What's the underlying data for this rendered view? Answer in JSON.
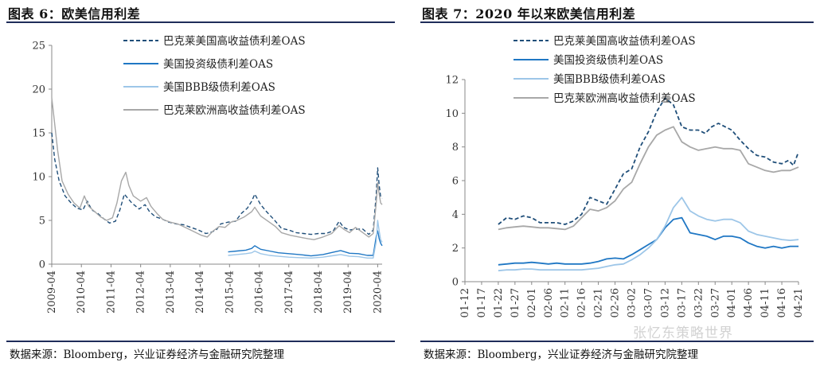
{
  "left_panel": {
    "title": "图表 6：欧美信用利差",
    "source": "数据来源：Bloomberg，兴业证券经济与金融研究院整理"
  },
  "right_panel": {
    "title": "图表 7：2020 年以来欧美信用利差",
    "source": "数据来源：Bloomberg，兴业证券经济与金融研究院整理"
  },
  "watermark": "张忆东策略世界",
  "colors": {
    "us_hy": "#1f4e79",
    "us_ig": "#1f77c4",
    "us_bbb": "#9dc6e8",
    "eu_hy": "#a8a8a8",
    "axis": "#888888"
  },
  "chart_data": [
    {
      "type": "line",
      "title": "欧美信用利差",
      "xlabel": "",
      "ylabel": "",
      "ylim": [
        0,
        25
      ],
      "yticks": [
        0,
        5,
        10,
        15,
        20,
        25
      ],
      "xlim": [
        2009.25,
        2020.4
      ],
      "xticks": [
        "2009-04",
        "2010-04",
        "2011-04",
        "2012-04",
        "2013-04",
        "2014-04",
        "2015-04",
        "2016-04",
        "2017-04",
        "2018-04",
        "2019-04",
        "2020-04"
      ],
      "xtick_values": [
        2009.25,
        2010.25,
        2011.25,
        2012.25,
        2013.25,
        2014.25,
        2015.25,
        2016.25,
        2017.25,
        2018.25,
        2019.25,
        2020.25
      ],
      "legend_position": "top-right",
      "series": [
        {
          "name": "巴克莱美国高收益债利差OAS",
          "key": "us_hy",
          "style": "dashed",
          "x": [
            2009.25,
            2009.35,
            2009.5,
            2009.7,
            2009.9,
            2010.1,
            2010.3,
            2010.45,
            2010.6,
            2010.8,
            2011.0,
            2011.2,
            2011.4,
            2011.55,
            2011.7,
            2011.8,
            2011.95,
            2012.2,
            2012.4,
            2012.55,
            2012.75,
            2012.95,
            2013.2,
            2013.45,
            2013.7,
            2013.95,
            2014.2,
            2014.45,
            2014.6,
            2014.8,
            2014.95,
            2015.2,
            2015.45,
            2015.65,
            2015.85,
            2016.0,
            2016.1,
            2016.3,
            2016.5,
            2016.75,
            2017.0,
            2017.25,
            2017.5,
            2017.75,
            2018.0,
            2018.25,
            2018.5,
            2018.75,
            2018.95,
            2019.1,
            2019.3,
            2019.5,
            2019.75,
            2019.95,
            2020.1,
            2020.2,
            2020.25,
            2020.3,
            2020.35,
            2020.4
          ],
          "values": [
            15.0,
            12.0,
            9.5,
            7.8,
            7.0,
            6.4,
            6.2,
            7.2,
            6.2,
            5.8,
            5.2,
            4.7,
            4.9,
            6.2,
            8.0,
            7.6,
            7.0,
            6.3,
            6.8,
            6.0,
            5.4,
            5.2,
            4.8,
            4.6,
            4.5,
            4.2,
            3.9,
            3.5,
            3.6,
            3.9,
            4.6,
            4.8,
            4.9,
            5.8,
            6.4,
            7.2,
            8.0,
            6.8,
            6.0,
            5.1,
            4.1,
            3.9,
            3.6,
            3.5,
            3.4,
            3.5,
            3.5,
            3.8,
            4.9,
            4.2,
            3.9,
            4.0,
            4.0,
            3.4,
            3.9,
            8.0,
            11.0,
            9.0,
            7.7,
            7.5
          ]
        },
        {
          "name": "美国投资级债利差OAS",
          "key": "us_ig",
          "style": "solid",
          "x": [
            2015.2,
            2015.5,
            2015.8,
            2016.0,
            2016.1,
            2016.3,
            2016.6,
            2016.9,
            2017.25,
            2017.6,
            2018.0,
            2018.4,
            2018.8,
            2019.0,
            2019.3,
            2019.6,
            2019.9,
            2020.1,
            2020.2,
            2020.25,
            2020.3,
            2020.35,
            2020.4
          ],
          "values": [
            1.4,
            1.5,
            1.6,
            1.8,
            2.1,
            1.7,
            1.5,
            1.3,
            1.2,
            1.1,
            0.95,
            1.1,
            1.4,
            1.55,
            1.25,
            1.2,
            1.0,
            1.0,
            3.2,
            3.8,
            2.9,
            2.4,
            2.1
          ]
        },
        {
          "name": "美国BBB级债利差OAS",
          "key": "us_bbb",
          "style": "solid",
          "x": [
            2015.2,
            2015.5,
            2015.8,
            2016.0,
            2016.1,
            2016.3,
            2016.6,
            2016.9,
            2017.25,
            2017.6,
            2018.0,
            2018.4,
            2018.8,
            2019.0,
            2019.3,
            2019.6,
            2019.9,
            2020.1,
            2020.2,
            2020.25,
            2020.3,
            2020.35,
            2020.4
          ],
          "values": [
            1.0,
            1.1,
            1.2,
            1.3,
            1.5,
            1.2,
            1.0,
            0.9,
            0.8,
            0.75,
            0.7,
            0.8,
            1.0,
            1.1,
            0.9,
            0.85,
            0.7,
            0.7,
            2.6,
            5.0,
            3.8,
            2.8,
            2.5
          ]
        },
        {
          "name": "巴克莱欧洲高收益债利差OAS",
          "key": "eu_hy",
          "style": "solid",
          "x": [
            2009.25,
            2009.3,
            2009.45,
            2009.6,
            2009.8,
            2010.0,
            2010.2,
            2010.35,
            2010.5,
            2010.7,
            2010.9,
            2011.1,
            2011.3,
            2011.45,
            2011.6,
            2011.75,
            2011.85,
            2012.0,
            2012.25,
            2012.45,
            2012.6,
            2012.8,
            2013.0,
            2013.25,
            2013.5,
            2013.75,
            2014.0,
            2014.3,
            2014.5,
            2014.7,
            2014.9,
            2015.1,
            2015.3,
            2015.5,
            2015.75,
            2016.0,
            2016.1,
            2016.3,
            2016.55,
            2016.8,
            2017.0,
            2017.3,
            2017.6,
            2017.9,
            2018.1,
            2018.4,
            2018.7,
            2018.95,
            2019.1,
            2019.3,
            2019.5,
            2019.75,
            2019.95,
            2020.1,
            2020.2,
            2020.25,
            2020.3,
            2020.35,
            2020.4
          ],
          "values": [
            19.0,
            17.5,
            13.0,
            9.5,
            8.0,
            7.0,
            6.4,
            7.8,
            6.6,
            6.0,
            5.4,
            5.0,
            5.3,
            7.0,
            9.5,
            10.5,
            9.0,
            7.8,
            7.2,
            7.6,
            6.6,
            5.8,
            5.1,
            4.8,
            4.6,
            4.2,
            3.8,
            3.3,
            3.1,
            3.8,
            4.3,
            4.2,
            4.8,
            5.0,
            5.4,
            6.0,
            6.5,
            5.5,
            4.9,
            4.3,
            3.6,
            3.3,
            3.1,
            2.9,
            2.8,
            3.1,
            3.5,
            4.4,
            4.0,
            3.6,
            4.2,
            3.6,
            3.1,
            3.5,
            7.0,
            9.3,
            8.0,
            7.0,
            6.8
          ]
        }
      ]
    },
    {
      "type": "line",
      "title": "2020 年以来欧美信用利差",
      "xlabel": "",
      "ylabel": "",
      "ylim": [
        0,
        12
      ],
      "yticks": [
        0,
        2,
        4,
        6,
        8,
        10,
        12
      ],
      "xticks": [
        "01-12",
        "01-17",
        "01-22",
        "01-27",
        "02-01",
        "02-06",
        "02-11",
        "02-16",
        "02-21",
        "02-26",
        "03-02",
        "03-07",
        "03-12",
        "03-17",
        "03-22",
        "03-27",
        "04-01",
        "04-06",
        "04-11",
        "04-16",
        "04-21"
      ],
      "xlim": [
        0,
        20
      ],
      "legend_position": "top-right",
      "series": [
        {
          "name": "巴克莱美国高收益债利差OAS",
          "key": "us_hy",
          "style": "dashed",
          "x": [
            2,
            2.5,
            3,
            3.5,
            4,
            4.5,
            5,
            5.5,
            6,
            6.5,
            7,
            7.5,
            8,
            8.5,
            9,
            9.5,
            10,
            10.5,
            11,
            11.5,
            12,
            12.5,
            13,
            13.5,
            14,
            14.4,
            14.8,
            15.2,
            15.6,
            16,
            16.5,
            17,
            17.5,
            18,
            18.5,
            19,
            19.4,
            19.7,
            20
          ],
          "values": [
            3.4,
            3.8,
            3.7,
            3.9,
            3.8,
            3.5,
            3.5,
            3.5,
            3.4,
            3.6,
            4.0,
            5.0,
            4.8,
            4.6,
            5.5,
            6.4,
            6.7,
            8.0,
            8.9,
            10.1,
            10.9,
            10.5,
            9.2,
            9.0,
            9.0,
            8.8,
            9.2,
            9.4,
            9.2,
            9.0,
            8.4,
            7.9,
            7.5,
            7.4,
            7.1,
            7.0,
            7.2,
            6.9,
            7.7
          ]
        },
        {
          "name": "美国投资级债利差OAS",
          "key": "us_ig",
          "style": "solid",
          "x": [
            2,
            2.5,
            3,
            3.5,
            4,
            4.5,
            5,
            5.5,
            6,
            6.5,
            7,
            7.5,
            8,
            8.5,
            9,
            9.5,
            10,
            10.5,
            11,
            11.5,
            12,
            12.5,
            13,
            13.5,
            14,
            14.5,
            15,
            15.5,
            16,
            16.5,
            17,
            17.5,
            18,
            18.5,
            19,
            19.5,
            20
          ],
          "values": [
            1.0,
            1.05,
            1.1,
            1.1,
            1.15,
            1.1,
            1.05,
            1.1,
            1.05,
            1.05,
            1.05,
            1.1,
            1.2,
            1.35,
            1.4,
            1.35,
            1.6,
            1.9,
            2.2,
            2.5,
            3.2,
            3.7,
            3.8,
            2.9,
            2.8,
            2.7,
            2.5,
            2.7,
            2.7,
            2.6,
            2.3,
            2.1,
            2.0,
            2.1,
            2.0,
            2.1,
            2.1
          ]
        },
        {
          "name": "美国BBB级债利差OAS",
          "key": "us_bbb",
          "style": "solid",
          "x": [
            2,
            2.5,
            3,
            3.5,
            4,
            4.5,
            5,
            5.5,
            6,
            6.5,
            7,
            7.5,
            8,
            8.5,
            9,
            9.5,
            10,
            10.5,
            11,
            11.5,
            12,
            12.5,
            13,
            13.5,
            14,
            14.5,
            15,
            15.5,
            16,
            16.5,
            17,
            17.5,
            18,
            18.5,
            19,
            19.5,
            20
          ],
          "values": [
            0.65,
            0.7,
            0.7,
            0.75,
            0.75,
            0.7,
            0.7,
            0.7,
            0.7,
            0.7,
            0.7,
            0.75,
            0.8,
            0.9,
            1.0,
            1.05,
            1.3,
            1.6,
            2.0,
            2.5,
            3.3,
            4.4,
            5.0,
            4.2,
            3.9,
            3.7,
            3.6,
            3.7,
            3.7,
            3.5,
            3.0,
            2.8,
            2.7,
            2.6,
            2.5,
            2.45,
            2.5
          ]
        },
        {
          "name": "巴克莱欧洲高收益债利差OAS",
          "key": "eu_hy",
          "style": "solid",
          "x": [
            2,
            2.5,
            3,
            3.5,
            4,
            4.5,
            5,
            5.5,
            6,
            6.5,
            7,
            7.5,
            8,
            8.5,
            9,
            9.5,
            10,
            10.5,
            11,
            11.5,
            12,
            12.5,
            13,
            13.5,
            14,
            14.5,
            15,
            15.5,
            16,
            16.5,
            17,
            17.5,
            18,
            18.5,
            19,
            19.5,
            20
          ],
          "values": [
            3.1,
            3.2,
            3.25,
            3.3,
            3.25,
            3.2,
            3.2,
            3.15,
            3.1,
            3.3,
            3.8,
            4.3,
            4.2,
            4.4,
            4.8,
            5.5,
            5.9,
            7.0,
            8.0,
            8.7,
            9.0,
            9.2,
            8.3,
            8.0,
            7.8,
            7.9,
            8.0,
            7.9,
            7.9,
            7.8,
            7.0,
            6.8,
            6.6,
            6.5,
            6.6,
            6.6,
            6.8
          ]
        }
      ]
    }
  ]
}
